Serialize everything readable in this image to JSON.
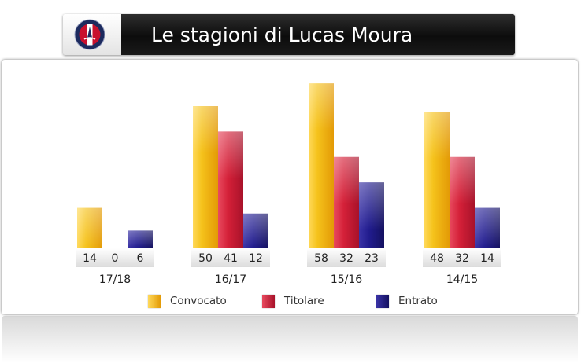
{
  "header": {
    "title": "Le stagioni di Lucas Moura"
  },
  "colors": {
    "convocato": "#f2b90d",
    "titolare": "#cc1f38",
    "entrato": "#1f1b86"
  },
  "chart_data": {
    "type": "bar",
    "title": "Le stagioni di Lucas Moura",
    "categories": [
      "17/18",
      "16/17",
      "15/16",
      "14/15"
    ],
    "series": [
      {
        "name": "Convocato",
        "values": [
          14,
          50,
          58,
          48
        ]
      },
      {
        "name": "Titolare",
        "values": [
          0,
          41,
          32,
          32
        ]
      },
      {
        "name": "Entrato",
        "values": [
          6,
          12,
          23,
          14
        ]
      }
    ],
    "legend": "bottom",
    "grid": false,
    "data_labels": true
  }
}
